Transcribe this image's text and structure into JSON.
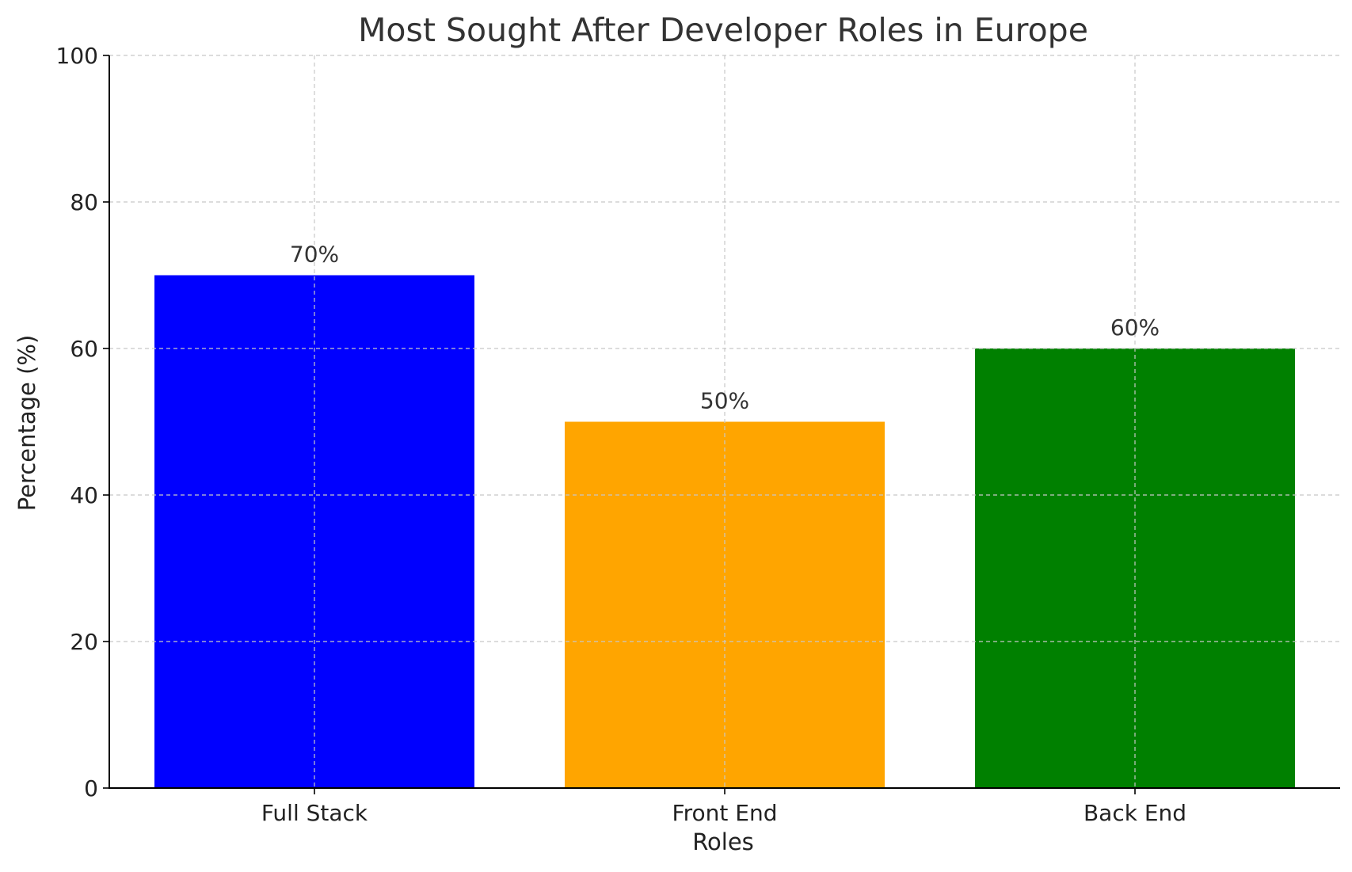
{
  "chart_data": {
    "type": "bar",
    "title": "Most Sought After Developer Roles in Europe",
    "xlabel": "Roles",
    "ylabel": "Percentage (%)",
    "categories": [
      "Full Stack",
      "Front End",
      "Back End"
    ],
    "values": [
      70,
      50,
      60
    ],
    "value_labels": [
      "70%",
      "50%",
      "60%"
    ],
    "colors": [
      "#0000ff",
      "#ffa500",
      "#008000"
    ],
    "ylim": [
      0,
      100
    ],
    "yticks": [
      0,
      20,
      40,
      60,
      80,
      100
    ],
    "grid": true,
    "legend": false
  }
}
